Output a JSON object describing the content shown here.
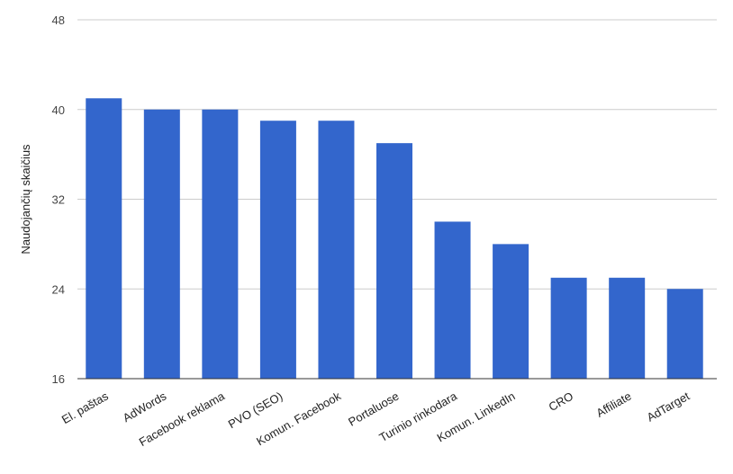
{
  "chart_data": {
    "type": "bar",
    "title": "",
    "xlabel": "",
    "ylabel": "Naudojančių skaičius",
    "ylim": [
      16,
      48
    ],
    "yticks": [
      16,
      24,
      32,
      40,
      48
    ],
    "grid": true,
    "legend": "none",
    "bar_color": "#3366cc",
    "grid_color": "#cccccc",
    "axis_color": "#333333",
    "text_color": "#222222",
    "categories": [
      "El. paštas",
      "AdWords",
      "Facebook reklama",
      "PVO (SEO)",
      "Komun. Facebook",
      "Portaluose",
      "Turinio rinkodara",
      "Komun. LinkedIn",
      "CRO",
      "Affiliate",
      "AdTarget"
    ],
    "values": [
      41,
      40,
      40,
      39,
      39,
      37,
      30,
      28,
      25,
      25,
      24
    ]
  }
}
